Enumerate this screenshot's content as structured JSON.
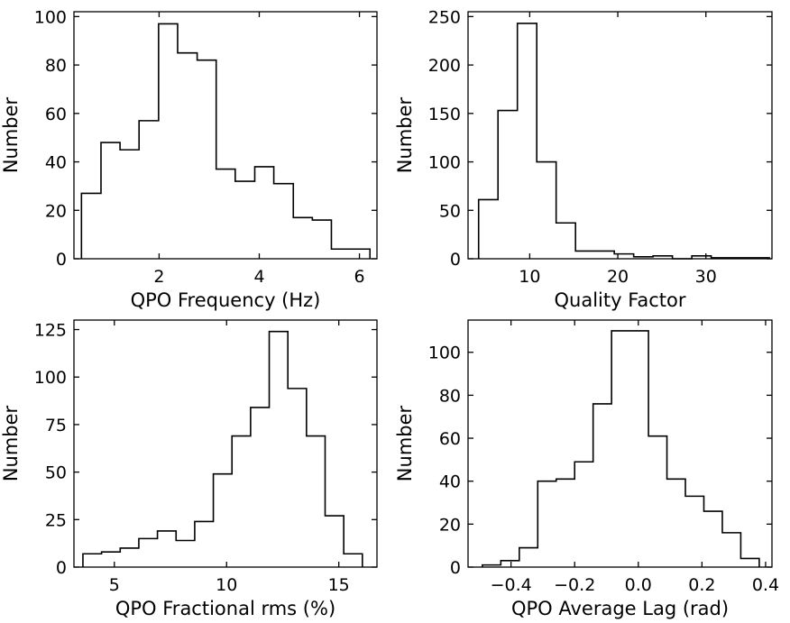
{
  "chart_data": [
    {
      "type": "histogram",
      "xlabel": "QPO Frequency (Hz)",
      "ylabel": "Number",
      "xlim": [
        0.3,
        6.35
      ],
      "ylim": [
        0,
        102
      ],
      "xticks": [
        2,
        4,
        6
      ],
      "xtick_labels": [
        "2",
        "4",
        "6"
      ],
      "yticks": [
        0,
        20,
        40,
        60,
        80,
        100
      ],
      "ytick_labels": [
        "0",
        "20",
        "40",
        "60",
        "80",
        "100"
      ],
      "bin_edges": [
        0.45,
        0.84,
        1.22,
        1.6,
        1.99,
        2.37,
        2.76,
        3.14,
        3.52,
        3.91,
        4.29,
        4.68,
        5.06,
        5.44,
        5.83,
        6.21
      ],
      "counts": [
        27,
        48,
        45,
        57,
        97,
        85,
        82,
        37,
        32,
        38,
        31,
        17,
        16,
        4,
        4
      ]
    },
    {
      "type": "histogram",
      "xlabel": "Quality Factor",
      "ylabel": "Number",
      "xlim": [
        3.0,
        37.5
      ],
      "ylim": [
        0,
        255
      ],
      "xticks": [
        10,
        20,
        30
      ],
      "xtick_labels": [
        "10",
        "20",
        "30"
      ],
      "yticks": [
        0,
        50,
        100,
        150,
        200,
        250
      ],
      "ytick_labels": [
        "0",
        "50",
        "100",
        "150",
        "200",
        "250"
      ],
      "bin_edges": [
        4.2,
        6.4,
        8.6,
        10.8,
        13.0,
        15.2,
        17.4,
        19.6,
        21.8,
        24.0,
        26.2,
        28.4,
        30.6,
        32.8,
        35.0,
        37.2
      ],
      "counts": [
        61,
        153,
        243,
        100,
        37,
        8,
        8,
        5,
        2,
        3,
        0,
        3,
        1,
        1,
        1
      ]
    },
    {
      "type": "histogram",
      "xlabel": "QPO Fractional rms (%)",
      "ylabel": "Number",
      "xlim": [
        3.2,
        16.7
      ],
      "ylim": [
        0,
        130
      ],
      "xticks": [
        5,
        10,
        15
      ],
      "xtick_labels": [
        "5",
        "10",
        "15"
      ],
      "yticks": [
        0,
        25,
        50,
        75,
        100,
        125
      ],
      "ytick_labels": [
        "0",
        "25",
        "50",
        "75",
        "100",
        "125"
      ],
      "bin_edges": [
        3.6,
        4.43,
        5.26,
        6.09,
        6.92,
        7.75,
        8.58,
        9.41,
        10.24,
        11.07,
        11.9,
        12.73,
        13.56,
        14.39,
        15.22,
        16.05
      ],
      "counts": [
        7,
        8,
        10,
        15,
        19,
        14,
        24,
        49,
        69,
        84,
        124,
        94,
        69,
        27,
        7
      ]
    },
    {
      "type": "histogram",
      "xlabel": "QPO Average Lag (rad)",
      "ylabel": "Number",
      "xlim": [
        -0.535,
        0.42
      ],
      "ylim": [
        0,
        115
      ],
      "xticks": [
        -0.4,
        -0.2,
        0.0,
        0.2,
        0.4
      ],
      "xtick_labels": [
        "−0.4",
        "−0.2",
        "0.0",
        "0.2",
        "0.4"
      ],
      "yticks": [
        0,
        20,
        40,
        60,
        80,
        100
      ],
      "ytick_labels": [
        "0",
        "20",
        "40",
        "60",
        "80",
        "100"
      ],
      "bin_edges": [
        -0.49,
        -0.432,
        -0.374,
        -0.316,
        -0.258,
        -0.2,
        -0.142,
        -0.084,
        -0.026,
        0.032,
        0.09,
        0.148,
        0.206,
        0.264,
        0.322,
        0.38
      ],
      "counts": [
        1,
        3,
        9,
        40,
        41,
        49,
        76,
        110,
        110,
        61,
        41,
        33,
        26,
        16,
        4
      ]
    }
  ]
}
